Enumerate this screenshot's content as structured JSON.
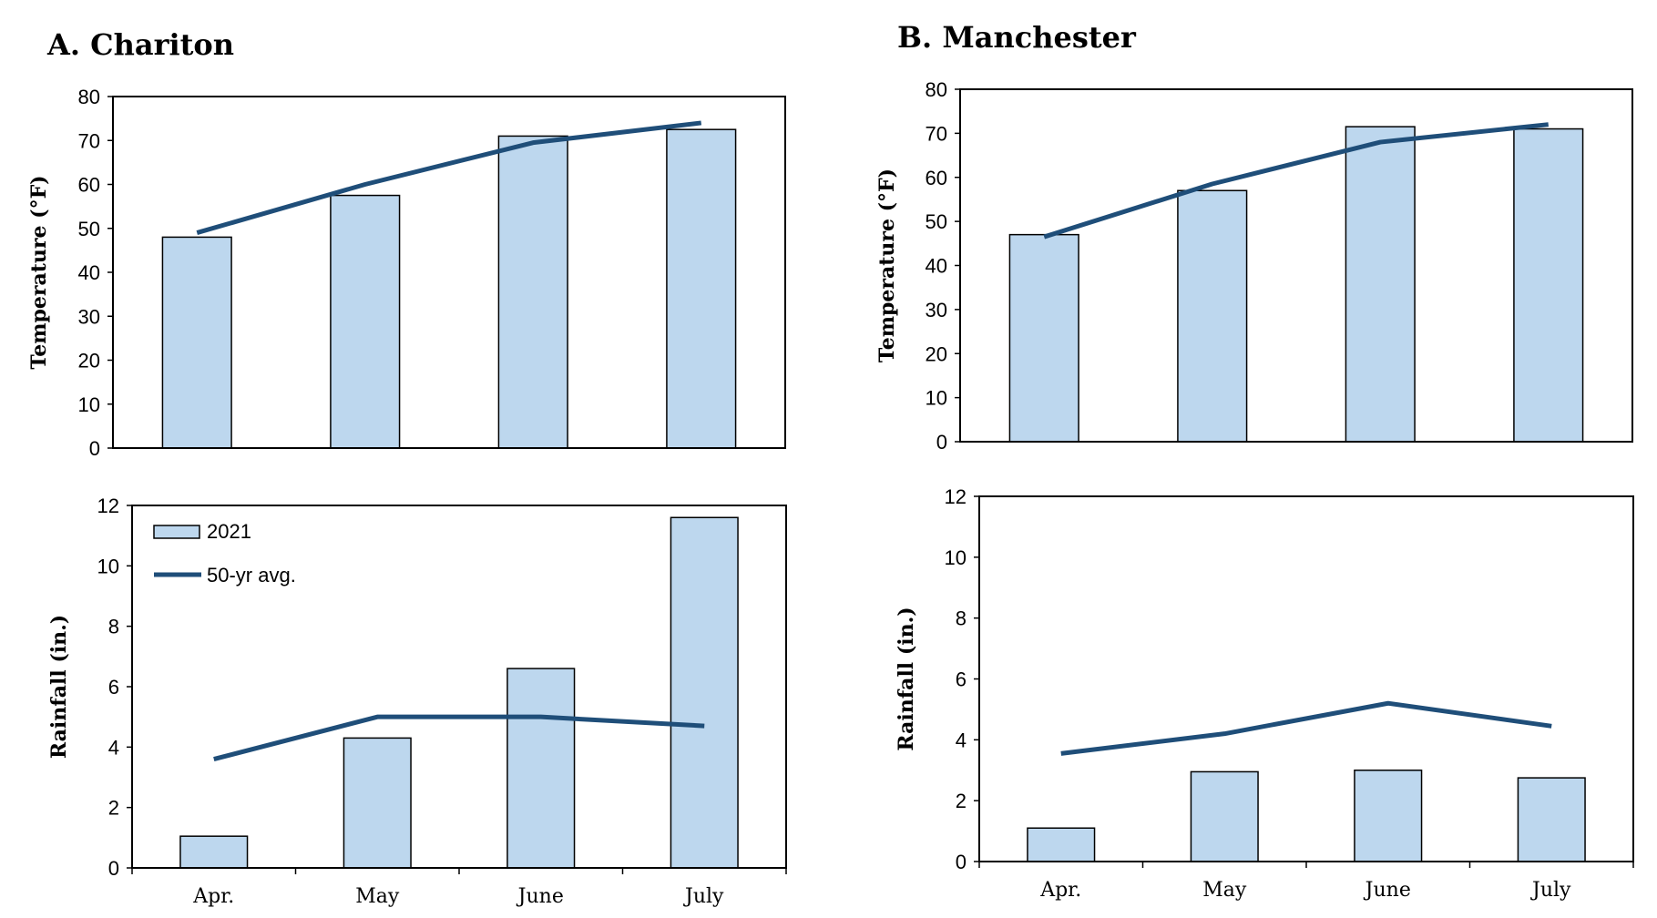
{
  "colors": {
    "bar": "#bdd7ee",
    "bar_edge": "#000000",
    "line": "#1f4e79"
  },
  "legend": {
    "bar_label": "2021",
    "line_label": "50-yr avg."
  },
  "panels": [
    {
      "title": "A. Chariton"
    },
    {
      "title": "B. Manchester"
    }
  ],
  "chart_data": [
    {
      "panel": "A. Chariton",
      "type": "bar",
      "ylabel": "Temperature (°F)",
      "ylim": [
        0,
        80
      ],
      "yticks": [
        0,
        10,
        20,
        30,
        40,
        50,
        60,
        70,
        80
      ],
      "categories": [
        "Apr.",
        "May",
        "June",
        "July"
      ],
      "show_categories": false,
      "series": [
        {
          "name": "2021",
          "type": "bar",
          "values": [
            48,
            57.5,
            71,
            72.5
          ]
        },
        {
          "name": "50-yr avg.",
          "type": "line",
          "values": [
            49,
            60,
            69.5,
            74
          ]
        }
      ],
      "legend": "none"
    },
    {
      "panel": "A. Chariton",
      "type": "bar",
      "ylabel": "Rainfall (in.)",
      "ylim": [
        0,
        12
      ],
      "yticks": [
        0,
        2,
        4,
        6,
        8,
        10,
        12
      ],
      "categories": [
        "Apr.",
        "May",
        "June",
        "July"
      ],
      "show_categories": true,
      "series": [
        {
          "name": "2021",
          "type": "bar",
          "values": [
            1.05,
            4.3,
            6.6,
            11.6
          ]
        },
        {
          "name": "50-yr avg.",
          "type": "line",
          "values": [
            3.6,
            5.0,
            5.0,
            4.7
          ]
        }
      ],
      "legend": "top-left"
    },
    {
      "panel": "B. Manchester",
      "type": "bar",
      "ylabel": "Temperature (°F)",
      "ylim": [
        0,
        80
      ],
      "yticks": [
        0,
        10,
        20,
        30,
        40,
        50,
        60,
        70,
        80
      ],
      "categories": [
        "Apr.",
        "May",
        "June",
        "July"
      ],
      "show_categories": false,
      "series": [
        {
          "name": "2021",
          "type": "bar",
          "values": [
            47,
            57,
            71.5,
            71
          ]
        },
        {
          "name": "50-yr avg.",
          "type": "line",
          "values": [
            46.5,
            58.5,
            68,
            72
          ]
        }
      ],
      "legend": "none"
    },
    {
      "panel": "B. Manchester",
      "type": "bar",
      "ylabel": "Rainfall (in.)",
      "ylim": [
        0,
        12
      ],
      "yticks": [
        0,
        2,
        4,
        6,
        8,
        10,
        12
      ],
      "categories": [
        "Apr.",
        "May",
        "June",
        "July"
      ],
      "show_categories": true,
      "series": [
        {
          "name": "2021",
          "type": "bar",
          "values": [
            1.1,
            2.95,
            3.0,
            2.75
          ]
        },
        {
          "name": "50-yr avg.",
          "type": "line",
          "values": [
            3.55,
            4.2,
            5.2,
            4.45
          ]
        }
      ],
      "legend": "none"
    }
  ]
}
